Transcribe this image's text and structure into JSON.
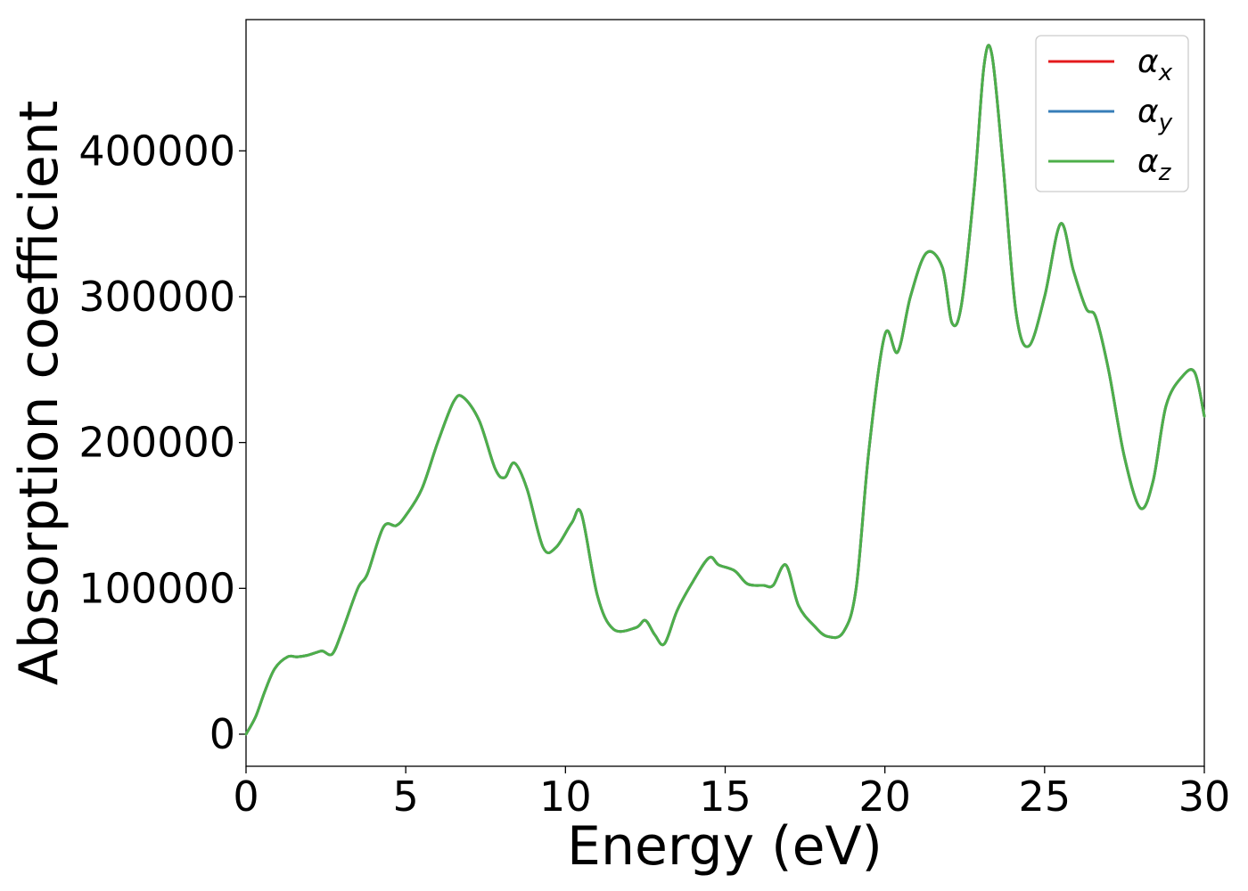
{
  "chart_data": {
    "type": "line",
    "title": "",
    "xlabel": "Energy (eV)",
    "ylabel": "Absorption coefficient",
    "xlim": [
      0,
      30
    ],
    "ylim": [
      -22000,
      490000
    ],
    "xticks": [
      "0",
      "5",
      "10",
      "15",
      "20",
      "25",
      "30"
    ],
    "yticks": [
      "0",
      "100000",
      "200000",
      "300000",
      "400000"
    ],
    "grid": false,
    "legend_position": "top-right",
    "series": [
      {
        "name": "α",
        "subscript": "x",
        "color": "#e41a1c"
      },
      {
        "name": "α",
        "subscript": "y",
        "color": "#377eb8"
      },
      {
        "name": "α",
        "subscript": "z",
        "color": "#4daf4a"
      }
    ],
    "x": [
      0,
      0.3,
      0.6,
      0.9,
      1.3,
      1.6,
      1.9,
      2.2,
      2.4,
      2.7,
      3.0,
      3.5,
      3.8,
      4.3,
      4.7,
      5.0,
      5.5,
      6.0,
      6.5,
      6.8,
      7.3,
      7.8,
      8.1,
      8.4,
      8.8,
      9.3,
      9.7,
      10.2,
      10.5,
      11.0,
      11.5,
      12.2,
      12.5,
      12.8,
      13.1,
      13.5,
      14.0,
      14.5,
      14.8,
      15.3,
      15.7,
      16.2,
      16.5,
      16.9,
      17.3,
      17.8,
      18.2,
      18.7,
      19.1,
      19.5,
      20.0,
      20.4,
      20.8,
      21.3,
      21.8,
      22.1,
      22.4,
      22.8,
      23.1,
      23.35,
      23.7,
      24.1,
      24.5,
      25.0,
      25.5,
      25.9,
      26.3,
      26.6,
      27.0,
      27.5,
      28.0,
      28.4,
      28.8,
      29.3,
      29.7,
      30.0
    ],
    "values": [
      0,
      12000,
      30000,
      45000,
      53000,
      53000,
      54000,
      56000,
      57000,
      55000,
      70000,
      100000,
      110000,
      142000,
      143000,
      150000,
      168000,
      200000,
      228000,
      231000,
      215000,
      182000,
      176000,
      186000,
      168000,
      128000,
      128000,
      145000,
      151000,
      95000,
      72000,
      73000,
      78000,
      68000,
      62000,
      85000,
      105000,
      121000,
      116000,
      112000,
      103000,
      102000,
      102000,
      116000,
      88000,
      74000,
      67000,
      70000,
      100000,
      195000,
      274000,
      262000,
      300000,
      330000,
      320000,
      282000,
      295000,
      375000,
      458000,
      466000,
      390000,
      290000,
      266000,
      300000,
      350000,
      318000,
      292000,
      286000,
      250000,
      190000,
      155000,
      174000,
      225000,
      245000,
      248000,
      218000
    ]
  }
}
